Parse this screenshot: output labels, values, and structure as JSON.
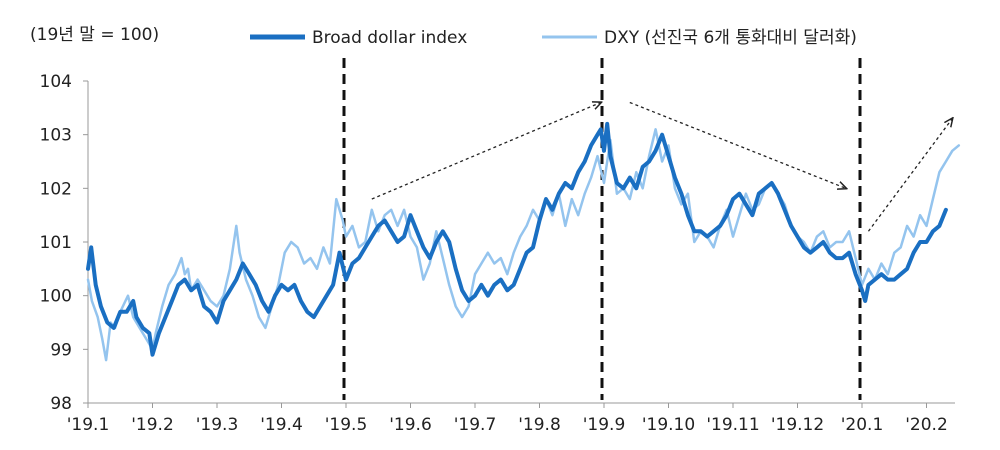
{
  "chart_data": {
    "type": "line",
    "unit_label": "(19년 말 = 100)",
    "ylim": [
      98,
      104
    ],
    "yticks": [
      98,
      99,
      100,
      101,
      102,
      103,
      104
    ],
    "x_range": [
      0,
      13.5
    ],
    "x_tick_labels": [
      "'19.1",
      "'19.2",
      "'19.3",
      "'19.4",
      "'19.5",
      "'19.6",
      "'19.7",
      "'19.8",
      "'19.9",
      "'19.10",
      "'19.11",
      "'19.12",
      "'20.1",
      "'20.2"
    ],
    "vertical_markers": [
      4.0,
      8.0,
      12.0
    ],
    "colors": {
      "broad": "#1a6fc2",
      "dxy": "#94c4ee",
      "axis": "#999999",
      "arrow": "#222222"
    },
    "series": [
      {
        "name": "Broad dollar index",
        "points": [
          [
            0.0,
            100.5
          ],
          [
            0.05,
            100.9
          ],
          [
            0.12,
            100.2
          ],
          [
            0.2,
            99.8
          ],
          [
            0.3,
            99.5
          ],
          [
            0.4,
            99.4
          ],
          [
            0.5,
            99.7
          ],
          [
            0.6,
            99.7
          ],
          [
            0.7,
            99.9
          ],
          [
            0.75,
            99.6
          ],
          [
            0.85,
            99.4
          ],
          [
            0.95,
            99.3
          ],
          [
            1.0,
            98.9
          ],
          [
            1.1,
            99.3
          ],
          [
            1.2,
            99.6
          ],
          [
            1.3,
            99.9
          ],
          [
            1.4,
            100.2
          ],
          [
            1.5,
            100.3
          ],
          [
            1.6,
            100.1
          ],
          [
            1.7,
            100.2
          ],
          [
            1.8,
            99.8
          ],
          [
            1.9,
            99.7
          ],
          [
            2.0,
            99.5
          ],
          [
            2.1,
            99.9
          ],
          [
            2.2,
            100.1
          ],
          [
            2.3,
            100.3
          ],
          [
            2.4,
            100.6
          ],
          [
            2.5,
            100.4
          ],
          [
            2.6,
            100.2
          ],
          [
            2.7,
            99.9
          ],
          [
            2.8,
            99.7
          ],
          [
            2.9,
            100.0
          ],
          [
            3.0,
            100.2
          ],
          [
            3.1,
            100.1
          ],
          [
            3.2,
            100.2
          ],
          [
            3.3,
            99.9
          ],
          [
            3.4,
            99.7
          ],
          [
            3.5,
            99.6
          ],
          [
            3.6,
            99.8
          ],
          [
            3.7,
            100.0
          ],
          [
            3.8,
            100.2
          ],
          [
            3.9,
            100.8
          ],
          [
            4.0,
            100.3
          ],
          [
            4.1,
            100.6
          ],
          [
            4.2,
            100.7
          ],
          [
            4.3,
            100.9
          ],
          [
            4.4,
            101.1
          ],
          [
            4.5,
            101.3
          ],
          [
            4.6,
            101.4
          ],
          [
            4.7,
            101.2
          ],
          [
            4.8,
            101.0
          ],
          [
            4.9,
            101.1
          ],
          [
            5.0,
            101.5
          ],
          [
            5.1,
            101.2
          ],
          [
            5.2,
            100.9
          ],
          [
            5.3,
            100.7
          ],
          [
            5.4,
            101.0
          ],
          [
            5.5,
            101.2
          ],
          [
            5.6,
            101.0
          ],
          [
            5.7,
            100.5
          ],
          [
            5.8,
            100.1
          ],
          [
            5.9,
            99.9
          ],
          [
            6.0,
            100.0
          ],
          [
            6.1,
            100.2
          ],
          [
            6.2,
            100.0
          ],
          [
            6.3,
            100.2
          ],
          [
            6.4,
            100.3
          ],
          [
            6.5,
            100.1
          ],
          [
            6.6,
            100.2
          ],
          [
            6.7,
            100.5
          ],
          [
            6.8,
            100.8
          ],
          [
            6.9,
            100.9
          ],
          [
            7.0,
            101.4
          ],
          [
            7.1,
            101.8
          ],
          [
            7.2,
            101.6
          ],
          [
            7.3,
            101.9
          ],
          [
            7.4,
            102.1
          ],
          [
            7.5,
            102.0
          ],
          [
            7.6,
            102.3
          ],
          [
            7.7,
            102.5
          ],
          [
            7.8,
            102.8
          ],
          [
            7.9,
            103.0
          ],
          [
            7.95,
            103.1
          ],
          [
            8.0,
            102.7
          ],
          [
            8.05,
            103.2
          ],
          [
            8.1,
            102.6
          ],
          [
            8.2,
            102.1
          ],
          [
            8.3,
            102.0
          ],
          [
            8.4,
            102.2
          ],
          [
            8.5,
            102.0
          ],
          [
            8.6,
            102.4
          ],
          [
            8.7,
            102.5
          ],
          [
            8.8,
            102.7
          ],
          [
            8.9,
            103.0
          ],
          [
            9.0,
            102.6
          ],
          [
            9.1,
            102.2
          ],
          [
            9.2,
            101.9
          ],
          [
            9.3,
            101.5
          ],
          [
            9.4,
            101.2
          ],
          [
            9.5,
            101.2
          ],
          [
            9.6,
            101.1
          ],
          [
            9.7,
            101.2
          ],
          [
            9.8,
            101.3
          ],
          [
            9.9,
            101.5
          ],
          [
            10.0,
            101.8
          ],
          [
            10.1,
            101.9
          ],
          [
            10.2,
            101.7
          ],
          [
            10.3,
            101.5
          ],
          [
            10.4,
            101.9
          ],
          [
            10.5,
            102.0
          ],
          [
            10.6,
            102.1
          ],
          [
            10.7,
            101.9
          ],
          [
            10.8,
            101.6
          ],
          [
            10.9,
            101.3
          ],
          [
            11.0,
            101.1
          ],
          [
            11.1,
            100.9
          ],
          [
            11.2,
            100.8
          ],
          [
            11.3,
            100.9
          ],
          [
            11.4,
            101.0
          ],
          [
            11.5,
            100.8
          ],
          [
            11.6,
            100.7
          ],
          [
            11.7,
            100.7
          ],
          [
            11.8,
            100.8
          ],
          [
            11.9,
            100.4
          ],
          [
            12.0,
            100.1
          ],
          [
            12.05,
            99.9
          ],
          [
            12.1,
            100.2
          ],
          [
            12.2,
            100.3
          ],
          [
            12.3,
            100.4
          ],
          [
            12.4,
            100.3
          ],
          [
            12.5,
            100.3
          ],
          [
            12.6,
            100.4
          ],
          [
            12.7,
            100.5
          ],
          [
            12.8,
            100.8
          ],
          [
            12.9,
            101.0
          ],
          [
            13.0,
            101.0
          ],
          [
            13.1,
            101.2
          ],
          [
            13.2,
            101.3
          ],
          [
            13.3,
            101.6
          ]
        ]
      },
      {
        "name": "DXY (선진국 6개 통화대비 달러화)",
        "points": [
          [
            0.0,
            100.3
          ],
          [
            0.06,
            99.9
          ],
          [
            0.15,
            99.6
          ],
          [
            0.22,
            99.2
          ],
          [
            0.28,
            98.8
          ],
          [
            0.35,
            99.5
          ],
          [
            0.42,
            99.4
          ],
          [
            0.5,
            99.7
          ],
          [
            0.58,
            99.9
          ],
          [
            0.62,
            100.0
          ],
          [
            0.7,
            99.6
          ],
          [
            0.8,
            99.4
          ],
          [
            0.9,
            99.2
          ],
          [
            1.0,
            99.0
          ],
          [
            1.05,
            99.3
          ],
          [
            1.15,
            99.8
          ],
          [
            1.25,
            100.2
          ],
          [
            1.35,
            100.4
          ],
          [
            1.45,
            100.7
          ],
          [
            1.5,
            100.4
          ],
          [
            1.55,
            100.5
          ],
          [
            1.6,
            100.1
          ],
          [
            1.7,
            100.3
          ],
          [
            1.8,
            100.1
          ],
          [
            1.9,
            99.9
          ],
          [
            2.0,
            99.8
          ],
          [
            2.1,
            100.0
          ],
          [
            2.2,
            100.5
          ],
          [
            2.3,
            101.3
          ],
          [
            2.35,
            100.8
          ],
          [
            2.45,
            100.3
          ],
          [
            2.55,
            100.0
          ],
          [
            2.65,
            99.6
          ],
          [
            2.75,
            99.4
          ],
          [
            2.85,
            99.8
          ],
          [
            2.95,
            100.2
          ],
          [
            3.05,
            100.8
          ],
          [
            3.15,
            101.0
          ],
          [
            3.25,
            100.9
          ],
          [
            3.35,
            100.6
          ],
          [
            3.45,
            100.7
          ],
          [
            3.55,
            100.5
          ],
          [
            3.65,
            100.9
          ],
          [
            3.75,
            100.6
          ],
          [
            3.85,
            101.8
          ],
          [
            3.95,
            101.4
          ],
          [
            4.0,
            101.1
          ],
          [
            4.1,
            101.3
          ],
          [
            4.2,
            100.9
          ],
          [
            4.3,
            101.0
          ],
          [
            4.4,
            101.6
          ],
          [
            4.5,
            101.2
          ],
          [
            4.6,
            101.5
          ],
          [
            4.7,
            101.6
          ],
          [
            4.8,
            101.3
          ],
          [
            4.9,
            101.6
          ],
          [
            5.0,
            101.1
          ],
          [
            5.1,
            100.9
          ],
          [
            5.2,
            100.3
          ],
          [
            5.3,
            100.6
          ],
          [
            5.4,
            101.2
          ],
          [
            5.5,
            100.7
          ],
          [
            5.6,
            100.2
          ],
          [
            5.7,
            99.8
          ],
          [
            5.8,
            99.6
          ],
          [
            5.9,
            99.8
          ],
          [
            6.0,
            100.4
          ],
          [
            6.1,
            100.6
          ],
          [
            6.2,
            100.8
          ],
          [
            6.3,
            100.6
          ],
          [
            6.4,
            100.7
          ],
          [
            6.5,
            100.4
          ],
          [
            6.6,
            100.8
          ],
          [
            6.7,
            101.1
          ],
          [
            6.8,
            101.3
          ],
          [
            6.9,
            101.6
          ],
          [
            7.0,
            101.4
          ],
          [
            7.1,
            101.8
          ],
          [
            7.2,
            101.5
          ],
          [
            7.3,
            101.9
          ],
          [
            7.4,
            101.3
          ],
          [
            7.5,
            101.8
          ],
          [
            7.6,
            101.5
          ],
          [
            7.7,
            101.9
          ],
          [
            7.8,
            102.2
          ],
          [
            7.9,
            102.6
          ],
          [
            8.0,
            102.1
          ],
          [
            8.1,
            102.9
          ],
          [
            8.2,
            101.9
          ],
          [
            8.3,
            102.0
          ],
          [
            8.4,
            101.8
          ],
          [
            8.5,
            102.3
          ],
          [
            8.6,
            102.0
          ],
          [
            8.7,
            102.6
          ],
          [
            8.8,
            103.1
          ],
          [
            8.9,
            102.5
          ],
          [
            9.0,
            102.8
          ],
          [
            9.1,
            102.0
          ],
          [
            9.2,
            101.7
          ],
          [
            9.3,
            101.9
          ],
          [
            9.4,
            101.0
          ],
          [
            9.5,
            101.2
          ],
          [
            9.6,
            101.1
          ],
          [
            9.7,
            100.9
          ],
          [
            9.8,
            101.3
          ],
          [
            9.9,
            101.6
          ],
          [
            10.0,
            101.1
          ],
          [
            10.1,
            101.5
          ],
          [
            10.2,
            101.9
          ],
          [
            10.3,
            101.6
          ],
          [
            10.4,
            101.7
          ],
          [
            10.5,
            102.0
          ],
          [
            10.6,
            102.1
          ],
          [
            10.7,
            101.9
          ],
          [
            10.8,
            101.7
          ],
          [
            10.9,
            101.3
          ],
          [
            11.0,
            101.1
          ],
          [
            11.1,
            101.0
          ],
          [
            11.2,
            100.8
          ],
          [
            11.3,
            101.1
          ],
          [
            11.4,
            101.2
          ],
          [
            11.5,
            100.9
          ],
          [
            11.6,
            101.0
          ],
          [
            11.7,
            101.0
          ],
          [
            11.8,
            101.2
          ],
          [
            11.9,
            100.7
          ],
          [
            12.0,
            100.2
          ],
          [
            12.1,
            100.5
          ],
          [
            12.2,
            100.3
          ],
          [
            12.3,
            100.6
          ],
          [
            12.4,
            100.4
          ],
          [
            12.5,
            100.8
          ],
          [
            12.6,
            100.9
          ],
          [
            12.7,
            101.3
          ],
          [
            12.8,
            101.1
          ],
          [
            12.9,
            101.5
          ],
          [
            13.0,
            101.3
          ],
          [
            13.1,
            101.8
          ],
          [
            13.2,
            102.3
          ],
          [
            13.3,
            102.5
          ],
          [
            13.4,
            102.7
          ],
          [
            13.5,
            102.8
          ]
        ]
      }
    ],
    "arrows": [
      {
        "from": [
          4.4,
          101.8
        ],
        "to": [
          7.95,
          103.6
        ]
      },
      {
        "from": [
          8.4,
          103.6
        ],
        "to": [
          11.75,
          102.0
        ]
      },
      {
        "from": [
          12.1,
          101.2
        ],
        "to": [
          13.4,
          103.3
        ]
      }
    ]
  }
}
